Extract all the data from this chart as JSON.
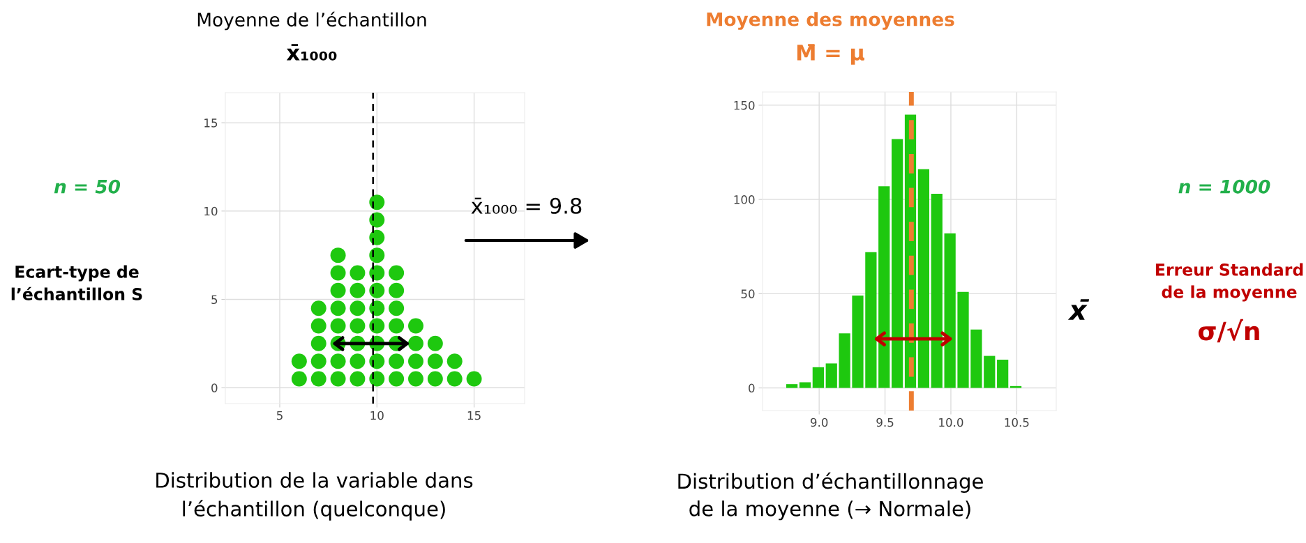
{
  "chart_data": [
    {
      "type": "scatter",
      "title": "Moyenne de l’échantillon",
      "subtitle": "x̄₁₀₀₀",
      "color": "#1ec80f",
      "marker": "circle",
      "x": [
        6,
        6,
        7,
        7,
        7,
        7,
        7,
        8,
        8,
        8,
        8,
        8,
        8,
        8,
        8,
        9,
        9,
        9,
        9,
        9,
        9,
        9,
        10,
        10,
        10,
        10,
        10,
        10,
        10,
        10,
        10,
        10,
        10,
        11,
        11,
        11,
        11,
        11,
        11,
        11,
        12,
        12,
        12,
        12,
        13,
        13,
        13,
        14,
        14,
        15
      ],
      "values": [
        0.5,
        1.5,
        0.5,
        1.5,
        2.5,
        3.5,
        4.5,
        0.5,
        1.5,
        2.5,
        3.5,
        4.5,
        5.5,
        6.5,
        7.5,
        0.5,
        1.5,
        2.5,
        3.5,
        4.5,
        5.5,
        6.5,
        0.5,
        1.5,
        2.5,
        3.5,
        4.5,
        5.5,
        6.5,
        7.5,
        8.5,
        9.5,
        10.5,
        0.5,
        1.5,
        2.5,
        3.5,
        4.5,
        5.5,
        6.5,
        0.5,
        1.5,
        2.5,
        3.5,
        0.5,
        1.5,
        2.5,
        0.5,
        1.5,
        0.5
      ],
      "xlim": [
        2.2,
        17.6
      ],
      "ylim": [
        -0.9,
        16.7
      ],
      "xticks": [
        5,
        10,
        15
      ],
      "yticks": [
        0,
        5,
        10,
        15
      ],
      "grid": true,
      "ref_lines": [
        {
          "axis": "x",
          "value": 9.8,
          "color": "#000000",
          "line_style": "dashed"
        }
      ],
      "annotations": [
        "n = 50",
        "Ecart-type de\nl’échantillon S",
        "Distribution de la variable dans\nl’échantillon (quelconque)"
      ]
    },
    {
      "type": "histogram",
      "title": "Moyenne des moyennes",
      "subtitle": "M̄ = μ",
      "xlabel": "x̄",
      "color": "#1ec80f",
      "bins": [
        8.75,
        8.85,
        8.95,
        9.05,
        9.15,
        9.25,
        9.35,
        9.45,
        9.55,
        9.65,
        9.75,
        9.85,
        9.95,
        10.05,
        10.15,
        10.25,
        10.35,
        10.45,
        10.55
      ],
      "values": [
        2,
        3,
        11,
        13,
        29,
        49,
        72,
        107,
        132,
        145,
        116,
        103,
        82,
        51,
        31,
        17,
        15,
        1
      ],
      "xlim": [
        8.57,
        10.8
      ],
      "ylim": [
        -12,
        157
      ],
      "xticks": [
        {
          "value": 9.0,
          "label": "9.0"
        },
        {
          "value": 9.5,
          "label": "9.5"
        },
        {
          "value": 10.0,
          "label": "10.0"
        },
        {
          "value": 10.5,
          "label": "10.5"
        }
      ],
      "yticks": [
        0,
        50,
        100,
        150
      ],
      "grid": true,
      "ref_lines": [
        {
          "axis": "x",
          "value": 9.7,
          "color": "#ed7d31",
          "line_style": "dashed"
        }
      ],
      "annotations": [
        "x̄₁₀₀₀ = 9.8",
        "n = 1000",
        "Erreur Standard\nde la moyenne",
        "σ/√n",
        "Distribution d’échantillonnage\nde la moyenne (→ Normale)"
      ]
    }
  ]
}
